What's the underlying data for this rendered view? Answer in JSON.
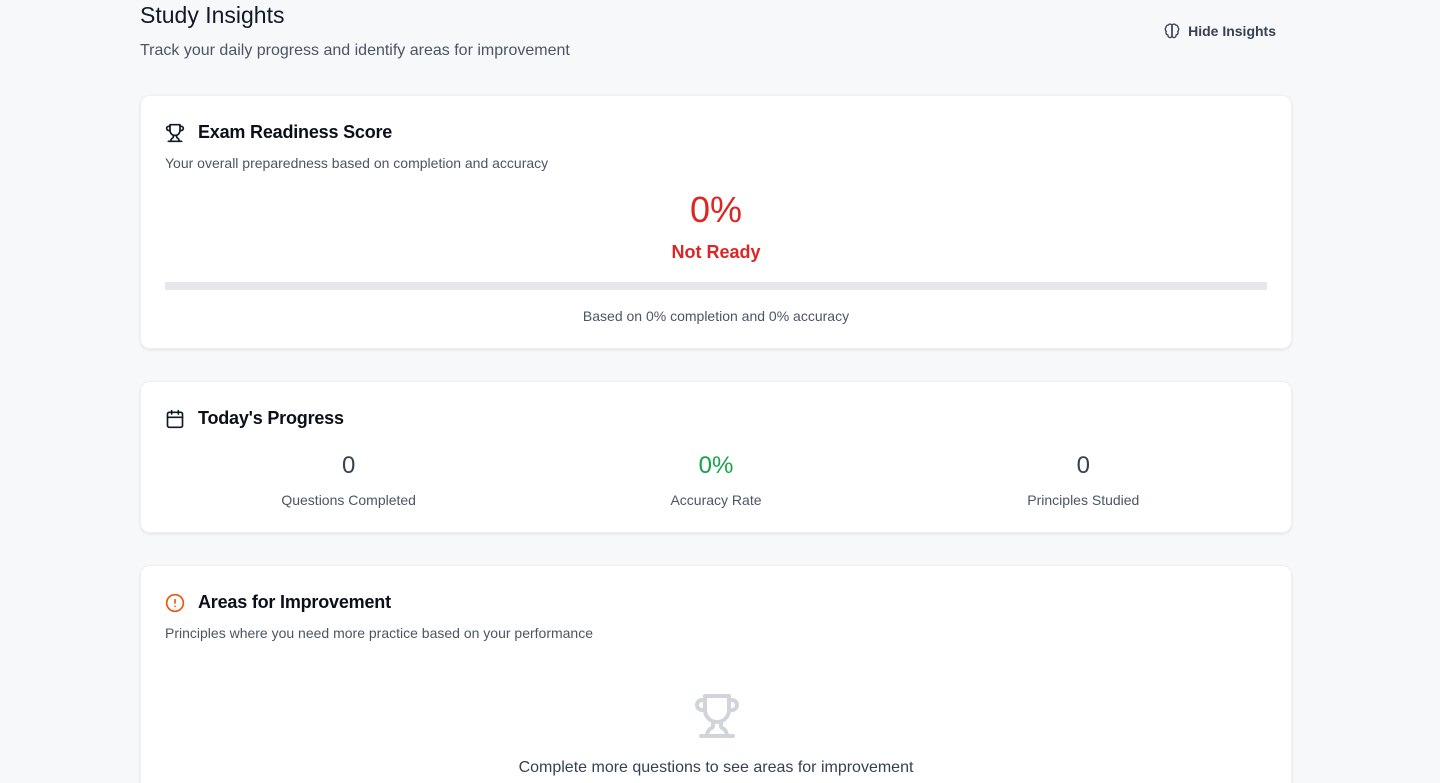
{
  "header": {
    "title": "Study Insights",
    "subtitle": "Track your daily progress and identify areas for improvement",
    "hide_button_label": "Hide Insights"
  },
  "readiness": {
    "title": "Exam Readiness Score",
    "description": "Your overall preparedness based on completion and accuracy",
    "score": "0%",
    "score_value": 0,
    "status": "Not Ready",
    "based_on": "Based on 0% completion and 0% accuracy",
    "status_color": "#dc2626"
  },
  "today": {
    "title": "Today's Progress",
    "stats": [
      {
        "value": "0",
        "label": "Questions Completed"
      },
      {
        "value": "0%",
        "label": "Accuracy Rate"
      },
      {
        "value": "0",
        "label": "Principles Studied"
      }
    ],
    "accuracy_color": "#16a34a"
  },
  "areas": {
    "title": "Areas for Improvement",
    "description": "Principles where you need more practice based on your performance",
    "empty_message": "Complete more questions to see areas for improvement",
    "icon_color": "#ea580c"
  },
  "icons": {
    "hide": "brain-icon",
    "readiness": "trophy-icon",
    "today": "calendar-icon",
    "areas": "alert-circle-icon",
    "empty": "trophy-icon"
  }
}
